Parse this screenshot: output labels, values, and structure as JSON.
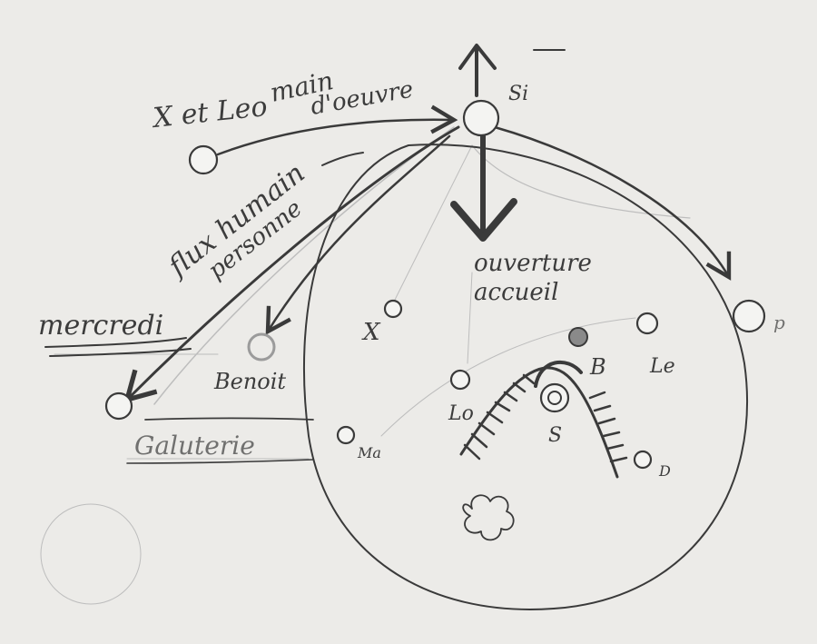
{
  "labels": {
    "x_et_leo": "X et Leo",
    "main_oeuvre_1": "main",
    "main_oeuvre_2": "d'oeuvre",
    "si": "Si",
    "flux_1": "flux humain",
    "flux_2": "personne",
    "ouverture_1": "ouverture",
    "ouverture_2": "accueil",
    "mercredi": "mercredi",
    "benoit": "Benoit",
    "galuterie": "Galuterie",
    "x": "X",
    "ma": "Ma",
    "lo": "Lo",
    "s": "S",
    "b": "B",
    "le": "Le",
    "d": "D",
    "p": "p"
  },
  "colors": {
    "paper": "#ecebe8",
    "pencil": "#3a3a3a",
    "pencil_faint": "#bdbdbd"
  }
}
